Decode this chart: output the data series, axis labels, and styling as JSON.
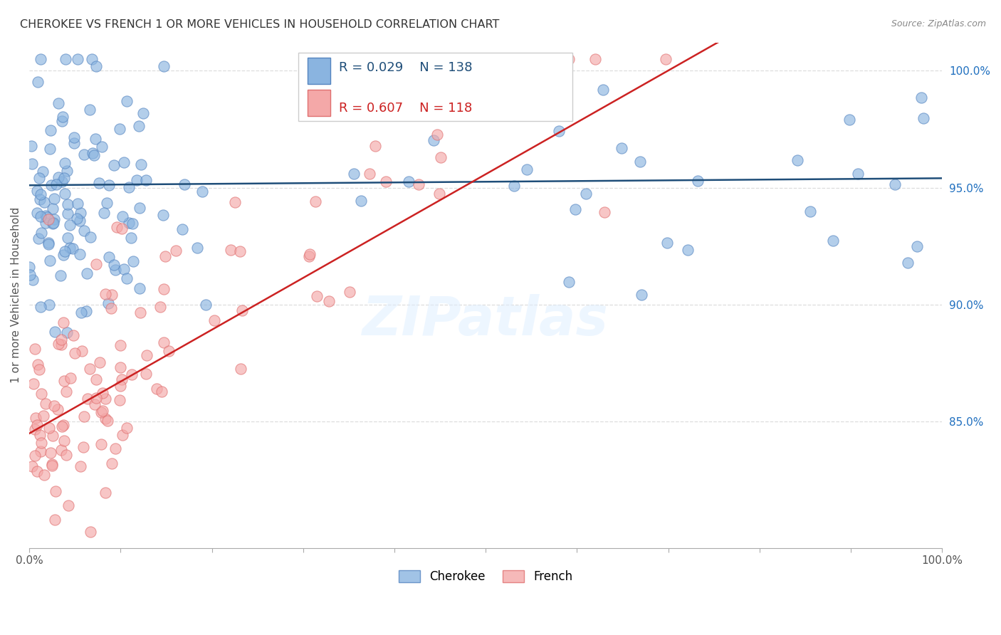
{
  "title": "CHEROKEE VS FRENCH 1 OR MORE VEHICLES IN HOUSEHOLD CORRELATION CHART",
  "source": "Source: ZipAtlas.com",
  "ylabel": "1 or more Vehicles in Household",
  "xlim": [
    0.0,
    1.0
  ],
  "ylim_low": 0.796,
  "ylim_high": 1.012,
  "ytick_positions": [
    0.85,
    0.9,
    0.95,
    1.0
  ],
  "ytick_labels": [
    "85.0%",
    "90.0%",
    "95.0%",
    "100.0%"
  ],
  "cherokee_color": "#8ab4e0",
  "french_color": "#f4a8a8",
  "cherokee_edge_color": "#5585c0",
  "french_edge_color": "#e07070",
  "cherokee_line_color": "#1f4e79",
  "french_line_color": "#cc2222",
  "ytick_label_color": "#1f6fbf",
  "R_cherokee": 0.029,
  "N_cherokee": 138,
  "R_french": 0.607,
  "N_french": 118,
  "watermark": "ZIPatlas",
  "background_color": "#ffffff",
  "grid_color": "#dddddd",
  "title_color": "#333333",
  "source_color": "#888888",
  "ylabel_color": "#555555"
}
